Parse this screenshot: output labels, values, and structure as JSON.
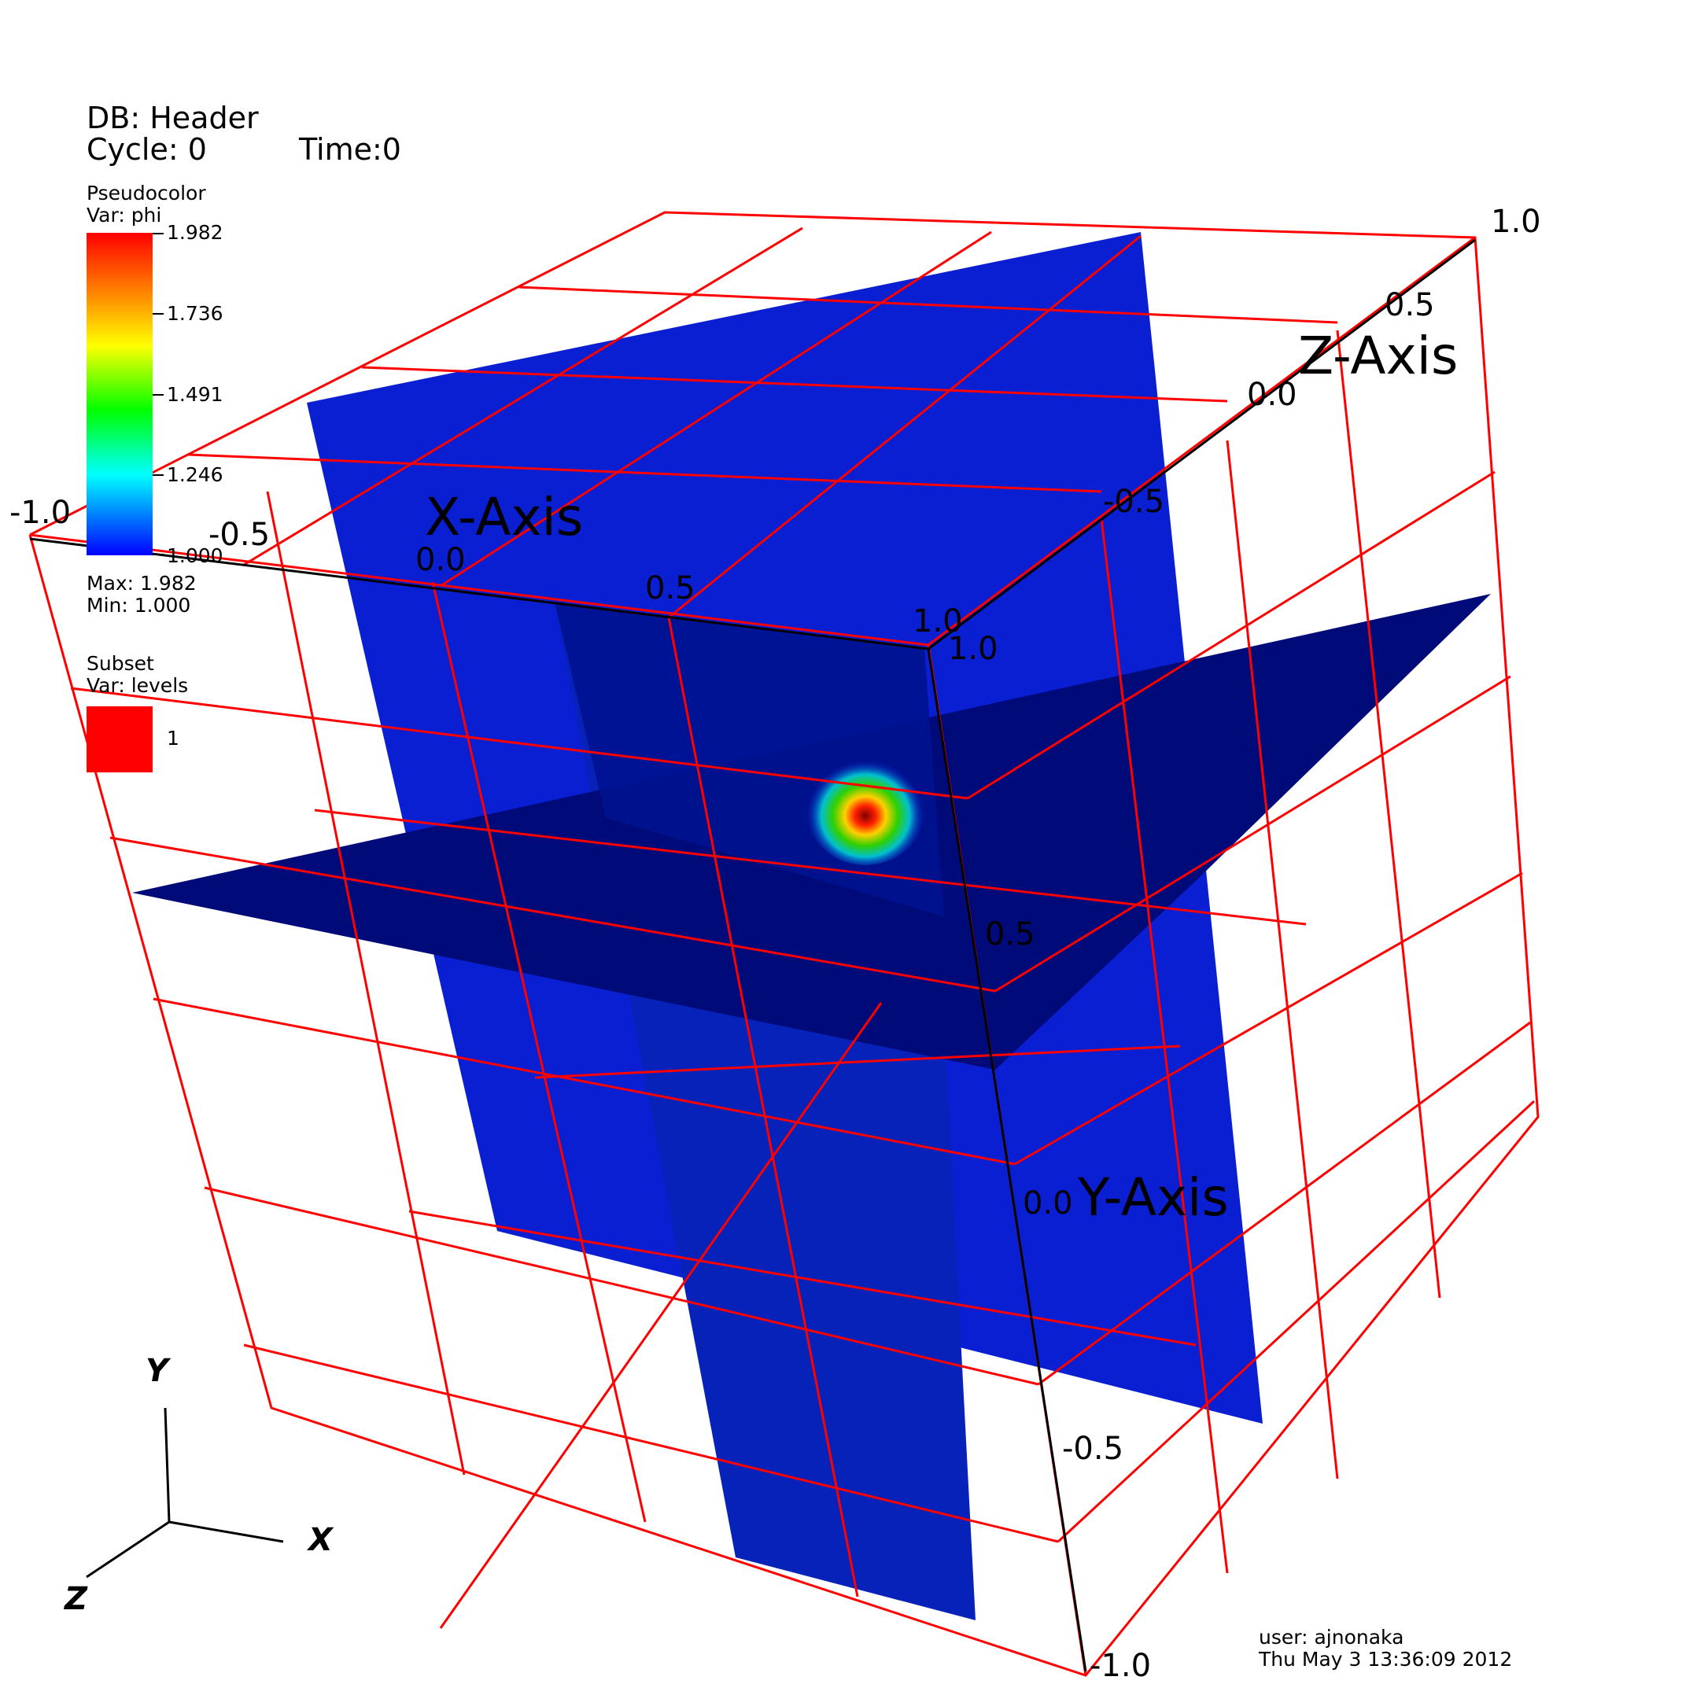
{
  "header": {
    "db": "DB: Header",
    "cycle": "Cycle: 0",
    "time": "Time:0"
  },
  "pseudocolor_legend": {
    "title": "Pseudocolor",
    "var": "Var: phi",
    "ticks": [
      "1.982",
      "1.736",
      "1.491",
      "1.246",
      "1.000"
    ],
    "max": "Max: 1.982",
    "min": "Min: 1.000",
    "colors": [
      "#ff0000",
      "#ff8000",
      "#ffff00",
      "#00ff00",
      "#00ffff",
      "#0000ff"
    ]
  },
  "subset_legend": {
    "title": "Subset",
    "var": "Var: levels",
    "entry": "1",
    "color": "#ff0000"
  },
  "axes": {
    "x_title": "X-Axis",
    "y_title": "Y-Axis",
    "z_title": "Z-Axis",
    "x_ticks": [
      "-1.0",
      "-0.5",
      "0.0",
      "0.5",
      "1.0"
    ],
    "y_ticks": [
      "1.0",
      "0.5",
      "0.0",
      "-0.5",
      "-1.0"
    ],
    "z_ticks": [
      "-0.5",
      "0.0",
      "0.5",
      "1.0"
    ],
    "origin_label": "1.0"
  },
  "triad": {
    "x": "X",
    "y": "Y",
    "z": "Z"
  },
  "footer": {
    "user": "user: ajnonaka",
    "date": "Thu May  3 13:36:09 2012"
  },
  "colors": {
    "mesh": "#ff0000",
    "slice_light": "#0a1ed2",
    "slice_dark": "#000a78",
    "background": "#ffffff"
  }
}
